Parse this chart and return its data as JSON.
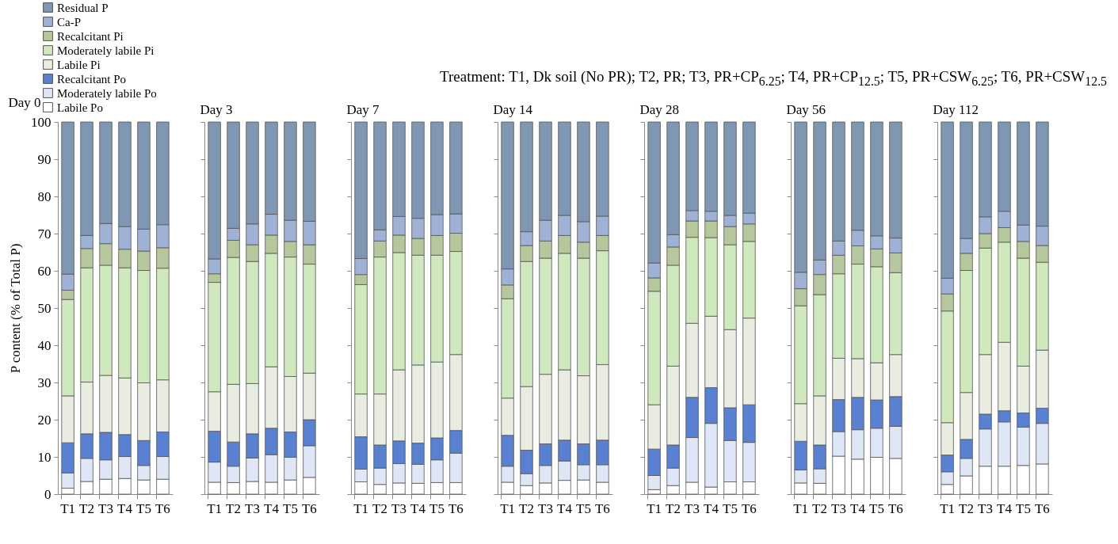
{
  "chart_data": [
    {
      "type": "bar",
      "stacked": true,
      "title": "Day 0",
      "ylabel": "P content (% of Total P)",
      "legend": "top left",
      "annotations": [
        "Treatment: T1, Dk soil (No PR); T2, PR; T3, PR+CP$_{6.25}$; T4, PR+CP$_{12.5}$; T5, PR+CSW$_{6.25}$; T6, PR+CSW$_{12.5}$"
      ],
      "categories": [
        "T1",
        "T2",
        "T3",
        "T4",
        "T5",
        "T6"
      ],
      "ylim": [
        0,
        100
      ],
      "yticks": [
        0,
        10,
        20,
        30,
        40,
        50,
        60,
        70,
        80,
        90,
        100
      ],
      "series": [
        {
          "name": "Labile Po",
          "color": "#ffffff",
          "values": [
            1.6,
            3.4,
            4.0,
            4.2,
            3.8,
            4.0
          ]
        },
        {
          "name": "Moderately labile Po",
          "color": "#dfe7f7",
          "values": [
            4.1,
            6.2,
            5.2,
            5.9,
            3.9,
            6.1
          ]
        },
        {
          "name": "Recalcitant Po",
          "color": "#5a80d2",
          "values": [
            8.1,
            6.6,
            7.4,
            5.9,
            6.7,
            6.6
          ]
        },
        {
          "name": "Labile Pi",
          "color": "#e9ece0",
          "values": [
            12.6,
            13.9,
            15.3,
            15.2,
            15.5,
            14.0
          ]
        },
        {
          "name": "Moderately labile Pi",
          "color": "#cfe8bd",
          "values": [
            25.9,
            30.7,
            29.6,
            29.6,
            30.2,
            30.0
          ]
        },
        {
          "name": "Recalcitant Pi",
          "color": "#b7c79d",
          "values": [
            2.5,
            5.2,
            5.8,
            5.0,
            5.2,
            5.5
          ]
        },
        {
          "name": "Ca-P",
          "color": "#9fb2d6",
          "values": [
            4.3,
            3.5,
            5.4,
            6.1,
            5.9,
            6.2
          ]
        },
        {
          "name": "Residual P",
          "color": "#7f97b2",
          "values": [
            40.9,
            30.5,
            27.3,
            28.1,
            28.8,
            27.6
          ]
        }
      ]
    },
    {
      "type": "bar",
      "stacked": true,
      "title": "Day 3",
      "tick_labels": "x",
      "categories": [
        "T1",
        "T2",
        "T3",
        "T4",
        "T5",
        "T6"
      ],
      "ylim": [
        0,
        100
      ],
      "yticks": [
        0,
        10,
        20,
        30,
        40,
        50,
        60,
        70,
        80,
        90,
        100
      ],
      "series": [
        {
          "color": "#ffffff",
          "values": [
            3.2,
            3.1,
            3.4,
            3.2,
            3.8,
            4.5
          ]
        },
        {
          "color": "#dfe7f7",
          "values": [
            5.4,
            4.4,
            6.3,
            7.4,
            6.1,
            8.5
          ]
        },
        {
          "color": "#5a80d2",
          "values": [
            8.3,
            6.5,
            6.5,
            7.1,
            6.8,
            7.0
          ]
        },
        {
          "color": "#e9ece0",
          "values": [
            10.6,
            15.5,
            13.5,
            16.5,
            14.9,
            12.5
          ]
        },
        {
          "color": "#cfe8bd",
          "values": [
            29.4,
            34.1,
            32.8,
            30.5,
            32.1,
            29.3
          ]
        },
        {
          "color": "#b7c79d",
          "values": [
            2.3,
            4.6,
            4.5,
            4.9,
            4.2,
            5.2
          ]
        },
        {
          "color": "#9fb2d6",
          "values": [
            4.0,
            3.2,
            5.6,
            5.6,
            5.7,
            6.3
          ]
        },
        {
          "color": "#7f97b2",
          "values": [
            36.8,
            28.6,
            27.4,
            24.8,
            26.4,
            26.7
          ]
        }
      ]
    },
    {
      "type": "bar",
      "stacked": true,
      "title": "Day 7",
      "tick_labels": "x",
      "categories": [
        "T1",
        "T2",
        "T3",
        "T4",
        "T5",
        "T6"
      ],
      "ylim": [
        0,
        100
      ],
      "yticks": [
        0,
        10,
        20,
        30,
        40,
        50,
        60,
        70,
        80,
        90,
        100
      ],
      "series": [
        {
          "color": "#ffffff",
          "values": [
            3.3,
            2.6,
            3.0,
            2.9,
            3.1,
            3.1
          ]
        },
        {
          "color": "#dfe7f7",
          "values": [
            3.4,
            4.4,
            5.2,
            5.1,
            6.1,
            7.9
          ]
        },
        {
          "color": "#5a80d2",
          "values": [
            8.7,
            6.2,
            6.1,
            5.7,
            5.9,
            6.1
          ]
        },
        {
          "color": "#e9ece0",
          "values": [
            11.5,
            13.7,
            19.1,
            21.0,
            20.4,
            20.4
          ]
        },
        {
          "color": "#cfe8bd",
          "values": [
            29.4,
            36.8,
            31.5,
            29.5,
            28.7,
            27.7
          ]
        },
        {
          "color": "#b7c79d",
          "values": [
            2.7,
            4.3,
            4.7,
            4.5,
            5.3,
            4.9
          ]
        },
        {
          "color": "#9fb2d6",
          "values": [
            4.3,
            3.0,
            5.0,
            5.4,
            5.6,
            5.2
          ]
        },
        {
          "color": "#7f97b2",
          "values": [
            36.7,
            29.0,
            25.4,
            25.9,
            24.9,
            24.7
          ]
        }
      ]
    },
    {
      "type": "bar",
      "stacked": true,
      "title": "Day 14",
      "tick_labels": "x",
      "categories": [
        "T1",
        "T2",
        "T3",
        "T4",
        "T5",
        "T6"
      ],
      "ylim": [
        0,
        100
      ],
      "yticks": [
        0,
        10,
        20,
        30,
        40,
        50,
        60,
        70,
        80,
        90,
        100
      ],
      "series": [
        {
          "color": "#ffffff",
          "values": [
            3.2,
            2.3,
            3.0,
            3.7,
            3.8,
            3.2
          ]
        },
        {
          "color": "#dfe7f7",
          "values": [
            4.3,
            3.2,
            4.7,
            5.2,
            4.1,
            4.7
          ]
        },
        {
          "color": "#5a80d2",
          "values": [
            8.3,
            6.3,
            5.8,
            5.6,
            5.6,
            6.6
          ]
        },
        {
          "color": "#e9ece0",
          "values": [
            10.0,
            17.1,
            18.7,
            18.9,
            18.3,
            20.3
          ]
        },
        {
          "color": "#cfe8bd",
          "values": [
            26.7,
            33.6,
            31.2,
            31.3,
            31.6,
            30.6
          ]
        },
        {
          "color": "#b7c79d",
          "values": [
            3.7,
            4.3,
            4.6,
            4.8,
            4.3,
            4.1
          ]
        },
        {
          "color": "#9fb2d6",
          "values": [
            4.3,
            3.7,
            5.6,
            5.4,
            5.5,
            5.2
          ]
        },
        {
          "color": "#7f97b2",
          "values": [
            39.5,
            29.5,
            26.4,
            25.1,
            26.8,
            25.3
          ]
        }
      ]
    },
    {
      "type": "bar",
      "stacked": true,
      "title": "Day 28",
      "tick_labels": "x",
      "categories": [
        "T1",
        "T2",
        "T3",
        "T4",
        "T5",
        "T6"
      ],
      "ylim": [
        0,
        100
      ],
      "yticks": [
        0,
        10,
        20,
        30,
        40,
        50,
        60,
        70,
        80,
        90,
        100
      ],
      "series": [
        {
          "color": "#ffffff",
          "values": [
            1.2,
            2.3,
            3.2,
            1.9,
            3.3,
            3.3
          ]
        },
        {
          "color": "#dfe7f7",
          "values": [
            3.8,
            4.7,
            12.0,
            17.1,
            11.1,
            10.6
          ]
        },
        {
          "color": "#5a80d2",
          "values": [
            7.1,
            6.2,
            10.8,
            9.6,
            8.8,
            10.1
          ]
        },
        {
          "color": "#e9ece0",
          "values": [
            11.9,
            21.2,
            19.9,
            19.2,
            21.0,
            23.3
          ]
        },
        {
          "color": "#cfe8bd",
          "values": [
            30.5,
            27.1,
            23.1,
            21.1,
            22.8,
            20.6
          ]
        },
        {
          "color": "#b7c79d",
          "values": [
            3.6,
            4.9,
            4.4,
            4.5,
            4.9,
            4.7
          ]
        },
        {
          "color": "#9fb2d6",
          "values": [
            4.0,
            3.3,
            2.8,
            2.6,
            3.0,
            2.9
          ]
        },
        {
          "color": "#7f97b2",
          "values": [
            37.9,
            30.3,
            23.8,
            24.0,
            25.1,
            24.5
          ]
        }
      ]
    },
    {
      "type": "bar",
      "stacked": true,
      "title": "Day 56",
      "tick_labels": "x",
      "categories": [
        "T1",
        "T2",
        "T3",
        "T4",
        "T5",
        "T6"
      ],
      "ylim": [
        0,
        100
      ],
      "yticks": [
        0,
        10,
        20,
        30,
        40,
        50,
        60,
        70,
        80,
        90,
        100
      ],
      "series": [
        {
          "color": "#ffffff",
          "values": [
            3.0,
            2.9,
            10.2,
            9.4,
            9.9,
            9.6
          ]
        },
        {
          "color": "#dfe7f7",
          "values": [
            3.5,
            3.9,
            6.6,
            7.9,
            7.8,
            8.6
          ]
        },
        {
          "color": "#5a80d2",
          "values": [
            7.7,
            6.4,
            8.6,
            8.7,
            7.6,
            8.0
          ]
        },
        {
          "color": "#e9ece0",
          "values": [
            10.1,
            13.2,
            11.1,
            10.4,
            10.0,
            11.3
          ]
        },
        {
          "color": "#cfe8bd",
          "values": [
            26.3,
            27.2,
            22.7,
            25.4,
            25.8,
            22.0
          ]
        },
        {
          "color": "#b7c79d",
          "values": [
            4.6,
            5.4,
            5.0,
            4.9,
            4.8,
            5.3
          ]
        },
        {
          "color": "#9fb2d6",
          "values": [
            4.4,
            3.9,
            3.8,
            4.2,
            3.5,
            4.0
          ]
        },
        {
          "color": "#7f97b2",
          "values": [
            40.4,
            37.1,
            32.0,
            29.1,
            30.6,
            31.2
          ]
        }
      ]
    },
    {
      "type": "bar",
      "stacked": true,
      "title": "Day 112",
      "tick_labels": "x",
      "categories": [
        "T1",
        "T2",
        "T3",
        "T4",
        "T5",
        "T6"
      ],
      "ylim": [
        0,
        100
      ],
      "yticks": [
        0,
        10,
        20,
        30,
        40,
        50,
        60,
        70,
        80,
        90,
        100
      ],
      "series": [
        {
          "color": "#ffffff",
          "values": [
            2.6,
            4.9,
            7.5,
            7.5,
            7.7,
            8.1
          ]
        },
        {
          "color": "#dfe7f7",
          "values": [
            3.4,
            4.7,
            10.0,
            11.9,
            10.3,
            10.9
          ]
        },
        {
          "color": "#5a80d2",
          "values": [
            4.5,
            5.1,
            4.0,
            3.0,
            3.8,
            4.1
          ]
        },
        {
          "color": "#e9ece0",
          "values": [
            8.7,
            12.6,
            16.0,
            18.4,
            12.6,
            15.6
          ]
        },
        {
          "color": "#cfe8bd",
          "values": [
            30.0,
            32.8,
            28.6,
            26.9,
            29.0,
            23.6
          ]
        },
        {
          "color": "#b7c79d",
          "values": [
            4.6,
            4.6,
            3.9,
            3.9,
            4.5,
            4.5
          ]
        },
        {
          "color": "#9fb2d6",
          "values": [
            4.2,
            4.0,
            4.5,
            4.4,
            4.4,
            5.2
          ]
        },
        {
          "color": "#7f97b2",
          "values": [
            42.0,
            31.3,
            25.5,
            24.0,
            27.7,
            28.0
          ]
        }
      ]
    }
  ]
}
